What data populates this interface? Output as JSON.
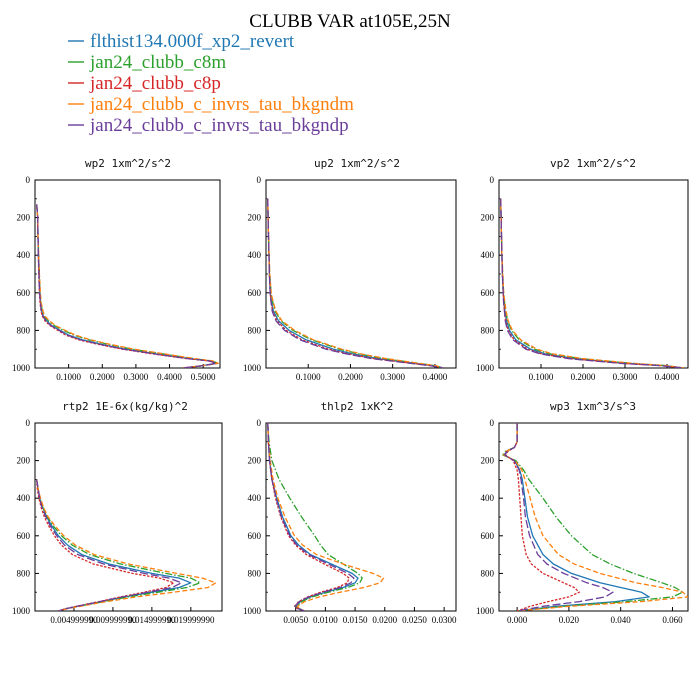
{
  "figure": {
    "title": "CLUBB VAR at105E,25N"
  },
  "legend": [
    {
      "name": "flthist134.000f_xp2_revert",
      "color": "#1f77b4"
    },
    {
      "name": "jan24_clubb_c8m",
      "color": "#2ca02c"
    },
    {
      "name": "jan24_clubb_c8p",
      "color": "#d62728"
    },
    {
      "name": "jan24_clubb_c_invrs_tau_bkgndm",
      "color": "#ff7f0e"
    },
    {
      "name": "jan24_clubb_c_invrs_tau_bkgndp",
      "color": "#6a3d9a"
    }
  ],
  "chart_data": [
    {
      "type": "line",
      "title": "wp2  1xm^2/s^2",
      "xlim": [
        0,
        0.55
      ],
      "ylim": [
        0,
        1000
      ],
      "y_inverted": true,
      "xticks": [
        "0.1000",
        "0.2000",
        "0.3000",
        "0.4000",
        "0.5000"
      ],
      "xtick_values": [
        0.1,
        0.2,
        0.3,
        0.4,
        0.5
      ],
      "yticks": [
        "0",
        "200",
        "400",
        "600",
        "800",
        "1000"
      ],
      "y": [
        130,
        200,
        300,
        400,
        500,
        600,
        650,
        700,
        725,
        750,
        775,
        800,
        825,
        850,
        875,
        900,
        925,
        950,
        962,
        975,
        987,
        1000
      ],
      "series": [
        {
          "x": [
            0.005,
            0.008,
            0.009,
            0.01,
            0.012,
            0.014,
            0.016,
            0.02,
            0.025,
            0.035,
            0.05,
            0.075,
            0.1,
            0.14,
            0.2,
            0.27,
            0.36,
            0.46,
            0.52,
            0.54,
            0.5,
            0.44
          ]
        },
        {
          "x": [
            0.005,
            0.008,
            0.009,
            0.011,
            0.013,
            0.015,
            0.017,
            0.022,
            0.028,
            0.04,
            0.058,
            0.085,
            0.115,
            0.16,
            0.22,
            0.29,
            0.38,
            0.47,
            0.525,
            0.545,
            0.5,
            0.44
          ]
        },
        {
          "x": [
            0.005,
            0.008,
            0.009,
            0.01,
            0.011,
            0.013,
            0.015,
            0.018,
            0.022,
            0.03,
            0.045,
            0.068,
            0.092,
            0.13,
            0.19,
            0.26,
            0.35,
            0.45,
            0.515,
            0.54,
            0.5,
            0.44
          ]
        },
        {
          "x": [
            0.005,
            0.008,
            0.009,
            0.011,
            0.013,
            0.016,
            0.018,
            0.024,
            0.03,
            0.043,
            0.062,
            0.09,
            0.12,
            0.165,
            0.225,
            0.295,
            0.385,
            0.475,
            0.528,
            0.545,
            0.5,
            0.44
          ]
        },
        {
          "x": [
            0.005,
            0.008,
            0.009,
            0.01,
            0.012,
            0.014,
            0.016,
            0.019,
            0.024,
            0.033,
            0.048,
            0.072,
            0.097,
            0.135,
            0.195,
            0.265,
            0.355,
            0.455,
            0.518,
            0.538,
            0.5,
            0.44
          ]
        }
      ]
    },
    {
      "type": "line",
      "title": "up2  1xm^2/s^2",
      "xlim": [
        0,
        0.45
      ],
      "ylim": [
        0,
        1000
      ],
      "y_inverted": true,
      "xticks": [
        "0.1000",
        "0.2000",
        "0.3000",
        "0.4000"
      ],
      "xtick_values": [
        0.1,
        0.2,
        0.3,
        0.4
      ],
      "yticks": [
        "0",
        "200",
        "400",
        "600",
        "800",
        "1000"
      ],
      "y": [
        100,
        200,
        300,
        400,
        500,
        600,
        650,
        700,
        750,
        800,
        850,
        900,
        925,
        950,
        975,
        987,
        1000
      ],
      "series": [
        {
          "x": [
            0.004,
            0.005,
            0.006,
            0.007,
            0.008,
            0.01,
            0.013,
            0.018,
            0.03,
            0.055,
            0.095,
            0.16,
            0.205,
            0.265,
            0.35,
            0.395,
            0.42
          ]
        },
        {
          "x": [
            0.004,
            0.005,
            0.006,
            0.007,
            0.009,
            0.012,
            0.016,
            0.022,
            0.036,
            0.064,
            0.108,
            0.175,
            0.22,
            0.28,
            0.36,
            0.4,
            0.42
          ]
        },
        {
          "x": [
            0.004,
            0.005,
            0.006,
            0.007,
            0.008,
            0.01,
            0.012,
            0.016,
            0.026,
            0.048,
            0.085,
            0.148,
            0.195,
            0.255,
            0.345,
            0.39,
            0.42
          ]
        },
        {
          "x": [
            0.004,
            0.005,
            0.006,
            0.007,
            0.009,
            0.012,
            0.017,
            0.024,
            0.038,
            0.068,
            0.112,
            0.18,
            0.225,
            0.285,
            0.362,
            0.402,
            0.42
          ]
        },
        {
          "x": [
            0.004,
            0.005,
            0.006,
            0.007,
            0.008,
            0.01,
            0.012,
            0.015,
            0.024,
            0.044,
            0.08,
            0.142,
            0.19,
            0.25,
            0.342,
            0.388,
            0.42
          ]
        }
      ]
    },
    {
      "type": "line",
      "title": "vp2  1xm^2/s^2",
      "xlim": [
        0,
        0.45
      ],
      "ylim": [
        0,
        1000
      ],
      "y_inverted": true,
      "xticks": [
        "0.1000",
        "0.2000",
        "0.3000",
        "0.4000"
      ],
      "xtick_values": [
        0.1,
        0.2,
        0.3,
        0.4
      ],
      "yticks": [
        "0",
        "200",
        "400",
        "600",
        "800",
        "1000"
      ],
      "y": [
        100,
        200,
        300,
        400,
        500,
        600,
        650,
        700,
        750,
        800,
        850,
        900,
        925,
        950,
        975,
        987,
        1000
      ],
      "series": [
        {
          "x": [
            0.004,
            0.005,
            0.006,
            0.007,
            0.008,
            0.01,
            0.012,
            0.014,
            0.018,
            0.025,
            0.04,
            0.075,
            0.11,
            0.18,
            0.3,
            0.39,
            0.44
          ]
        },
        {
          "x": [
            0.004,
            0.005,
            0.006,
            0.007,
            0.009,
            0.011,
            0.013,
            0.016,
            0.021,
            0.03,
            0.048,
            0.085,
            0.122,
            0.195,
            0.315,
            0.398,
            0.44
          ]
        },
        {
          "x": [
            0.004,
            0.005,
            0.006,
            0.007,
            0.008,
            0.01,
            0.011,
            0.013,
            0.016,
            0.022,
            0.036,
            0.068,
            0.102,
            0.17,
            0.292,
            0.385,
            0.44
          ]
        },
        {
          "x": [
            0.004,
            0.005,
            0.006,
            0.007,
            0.009,
            0.011,
            0.014,
            0.017,
            0.022,
            0.032,
            0.052,
            0.09,
            0.128,
            0.2,
            0.318,
            0.4,
            0.44
          ]
        },
        {
          "x": [
            0.004,
            0.005,
            0.006,
            0.007,
            0.008,
            0.01,
            0.011,
            0.013,
            0.015,
            0.02,
            0.033,
            0.064,
            0.098,
            0.165,
            0.288,
            0.383,
            0.44
          ]
        }
      ]
    },
    {
      "type": "line",
      "title": "rtp2  1E-6x(kg/kg)^2",
      "xlim": [
        0,
        0.024
      ],
      "ylim": [
        0,
        1000
      ],
      "y_inverted": true,
      "xticks": [
        "0.004999990",
        "0.009999990",
        "0.014999990",
        "0.019999990"
      ],
      "xtick_values": [
        0.005,
        0.01,
        0.015,
        0.02
      ],
      "yticks": [
        "0",
        "200",
        "400",
        "600",
        "800",
        "1000"
      ],
      "y": [
        300,
        350,
        400,
        450,
        500,
        550,
        600,
        650,
        700,
        750,
        800,
        825,
        850,
        875,
        900,
        925,
        950,
        975,
        987,
        1000
      ],
      "series": [
        {
          "x": [
            0.0002,
            0.0004,
            0.0006,
            0.001,
            0.0015,
            0.0022,
            0.003,
            0.0042,
            0.006,
            0.0095,
            0.015,
            0.0185,
            0.02,
            0.0185,
            0.015,
            0.0115,
            0.0085,
            0.0055,
            0.004,
            0.003
          ]
        },
        {
          "x": [
            0.0002,
            0.0004,
            0.0006,
            0.001,
            0.0016,
            0.0024,
            0.0034,
            0.0048,
            0.007,
            0.011,
            0.0168,
            0.02,
            0.0212,
            0.0195,
            0.0158,
            0.012,
            0.0088,
            0.0056,
            0.004,
            0.003
          ]
        },
        {
          "x": [
            0.0002,
            0.0003,
            0.0005,
            0.0008,
            0.0012,
            0.0018,
            0.0025,
            0.0034,
            0.0048,
            0.0075,
            0.0125,
            0.016,
            0.0178,
            0.0168,
            0.014,
            0.011,
            0.0082,
            0.0053,
            0.004,
            0.003
          ]
        },
        {
          "x": [
            0.0002,
            0.0004,
            0.0007,
            0.0011,
            0.0017,
            0.0026,
            0.0037,
            0.0052,
            0.0076,
            0.012,
            0.0182,
            0.0215,
            0.0232,
            0.0222,
            0.0178,
            0.013,
            0.0092,
            0.0058,
            0.0042,
            0.003
          ]
        },
        {
          "x": [
            0.0002,
            0.0004,
            0.0006,
            0.0009,
            0.0014,
            0.002,
            0.0028,
            0.0038,
            0.0055,
            0.0088,
            0.014,
            0.0172,
            0.0188,
            0.0176,
            0.0145,
            0.0112,
            0.0083,
            0.0054,
            0.004,
            0.003
          ]
        }
      ]
    },
    {
      "type": "line",
      "title": "thlp2  1xK^2",
      "xlim": [
        0,
        0.032
      ],
      "ylim": [
        0,
        1000
      ],
      "y_inverted": true,
      "xticks": [
        "0.0050",
        "0.0100",
        "0.0150",
        "0.0200",
        "0.0250",
        "0.0300"
      ],
      "xtick_values": [
        0.005,
        0.01,
        0.015,
        0.02,
        0.025,
        0.03
      ],
      "yticks": [
        "0",
        "200",
        "400",
        "600",
        "800",
        "1000"
      ],
      "y": [
        0,
        100,
        200,
        300,
        400,
        500,
        600,
        650,
        700,
        750,
        800,
        825,
        850,
        875,
        900,
        925,
        950,
        975,
        987,
        1000
      ],
      "series": [
        {
          "x": [
            0.0003,
            0.0004,
            0.0006,
            0.001,
            0.0018,
            0.0028,
            0.0042,
            0.0055,
            0.0075,
            0.011,
            0.0145,
            0.0155,
            0.015,
            0.013,
            0.01,
            0.0075,
            0.0058,
            0.005,
            0.0055,
            0.0065
          ]
        },
        {
          "x": [
            0.0003,
            0.0005,
            0.001,
            0.0022,
            0.004,
            0.006,
            0.0082,
            0.0092,
            0.0105,
            0.013,
            0.0155,
            0.0162,
            0.0158,
            0.0138,
            0.0105,
            0.0078,
            0.006,
            0.0052,
            0.0056,
            0.0065
          ]
        },
        {
          "x": [
            0.0003,
            0.0004,
            0.0006,
            0.001,
            0.0016,
            0.0025,
            0.0038,
            0.005,
            0.0068,
            0.0098,
            0.013,
            0.014,
            0.0137,
            0.012,
            0.0092,
            0.007,
            0.0055,
            0.0048,
            0.0053,
            0.0065
          ]
        },
        {
          "x": [
            0.0003,
            0.0004,
            0.0007,
            0.0012,
            0.002,
            0.0032,
            0.0048,
            0.0062,
            0.0085,
            0.013,
            0.018,
            0.0198,
            0.0192,
            0.0165,
            0.0125,
            0.009,
            0.0065,
            0.0053,
            0.0056,
            0.0065
          ]
        },
        {
          "x": [
            0.0003,
            0.0004,
            0.0006,
            0.001,
            0.0017,
            0.0026,
            0.004,
            0.0052,
            0.0072,
            0.0105,
            0.0138,
            0.0148,
            0.0143,
            0.0125,
            0.0096,
            0.0072,
            0.0056,
            0.0049,
            0.0054,
            0.0065
          ]
        }
      ]
    },
    {
      "type": "line",
      "title": "wp3  1xm^3/s^3",
      "xlim": [
        -0.007,
        0.066
      ],
      "ylim": [
        0,
        1000
      ],
      "y_inverted": true,
      "xticks": [
        "0.000",
        "0.020",
        "0.040",
        "0.060"
      ],
      "xtick_values": [
        0,
        0.02,
        0.04,
        0.06
      ],
      "yticks": [
        "0",
        "200",
        "400",
        "600",
        "800",
        "1000"
      ],
      "y": [
        0,
        100,
        130,
        150,
        170,
        185,
        200,
        250,
        300,
        400,
        500,
        600,
        700,
        750,
        800,
        850,
        875,
        900,
        925,
        950,
        975,
        1000
      ],
      "series": [
        {
          "x": [
            0.0,
            0.0,
            -0.001,
            -0.004,
            -0.005,
            -0.003,
            -0.001,
            0.001,
            0.002,
            0.003,
            0.004,
            0.006,
            0.01,
            0.014,
            0.021,
            0.032,
            0.04,
            0.048,
            0.051,
            0.038,
            0.015,
            0.0
          ]
        },
        {
          "x": [
            0.0,
            0.0,
            -0.001,
            -0.0045,
            -0.0055,
            -0.003,
            -0.0005,
            0.0025,
            0.0045,
            0.01,
            0.015,
            0.021,
            0.029,
            0.036,
            0.045,
            0.056,
            0.061,
            0.064,
            0.06,
            0.042,
            0.018,
            0.0
          ]
        },
        {
          "x": [
            0.0,
            0.0,
            -0.001,
            -0.0035,
            -0.0045,
            -0.003,
            -0.0015,
            0.0,
            0.0005,
            0.001,
            0.0015,
            0.002,
            0.0035,
            0.0055,
            0.01,
            0.018,
            0.022,
            0.024,
            0.02,
            0.012,
            0.005,
            0.0
          ]
        },
        {
          "x": [
            0.0,
            0.0,
            -0.001,
            -0.0042,
            -0.0052,
            -0.003,
            -0.0008,
            0.0018,
            0.003,
            0.005,
            0.007,
            0.01,
            0.016,
            0.022,
            0.032,
            0.046,
            0.056,
            0.064,
            0.066,
            0.048,
            0.02,
            0.0
          ]
        },
        {
          "x": [
            0.0,
            0.0,
            -0.001,
            -0.0038,
            -0.0048,
            -0.003,
            -0.0012,
            0.0008,
            0.0015,
            0.0025,
            0.0032,
            0.0048,
            0.008,
            0.0115,
            0.018,
            0.027,
            0.033,
            0.037,
            0.034,
            0.024,
            0.01,
            0.0
          ]
        }
      ]
    }
  ]
}
